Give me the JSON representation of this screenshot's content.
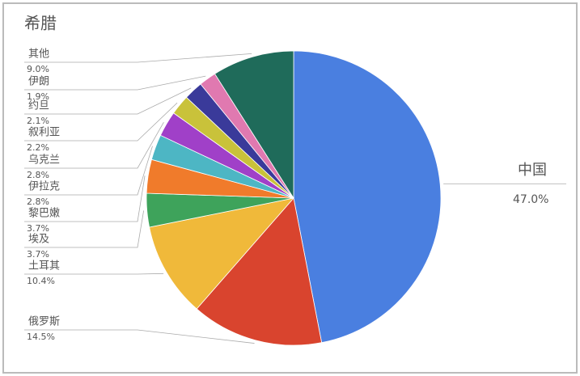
{
  "chart_data": {
    "type": "pie",
    "title": "希腊",
    "categories": [
      "中国",
      "俄罗斯",
      "土耳其",
      "埃及",
      "黎巴嫩",
      "伊拉克",
      "乌克兰",
      "叙利亚",
      "约旦",
      "伊朗",
      "其他"
    ],
    "values": [
      47.0,
      14.5,
      10.4,
      3.7,
      3.7,
      2.8,
      2.8,
      2.2,
      2.1,
      1.9,
      9.0
    ],
    "value_labels": [
      "47.0%",
      "14.5%",
      "10.4%",
      "3.7%",
      "3.7%",
      "2.8%",
      "2.8%",
      "2.2%",
      "2.1%",
      "1.9%",
      "9.0%"
    ],
    "colors": [
      "#4a7fe0",
      "#d9442e",
      "#f0b93a",
      "#3ea35b",
      "#f07b2b",
      "#4db6c4",
      "#a040c8",
      "#c9c23a",
      "#3a3a9a",
      "#e079b0",
      "#1f6b5a"
    ]
  }
}
